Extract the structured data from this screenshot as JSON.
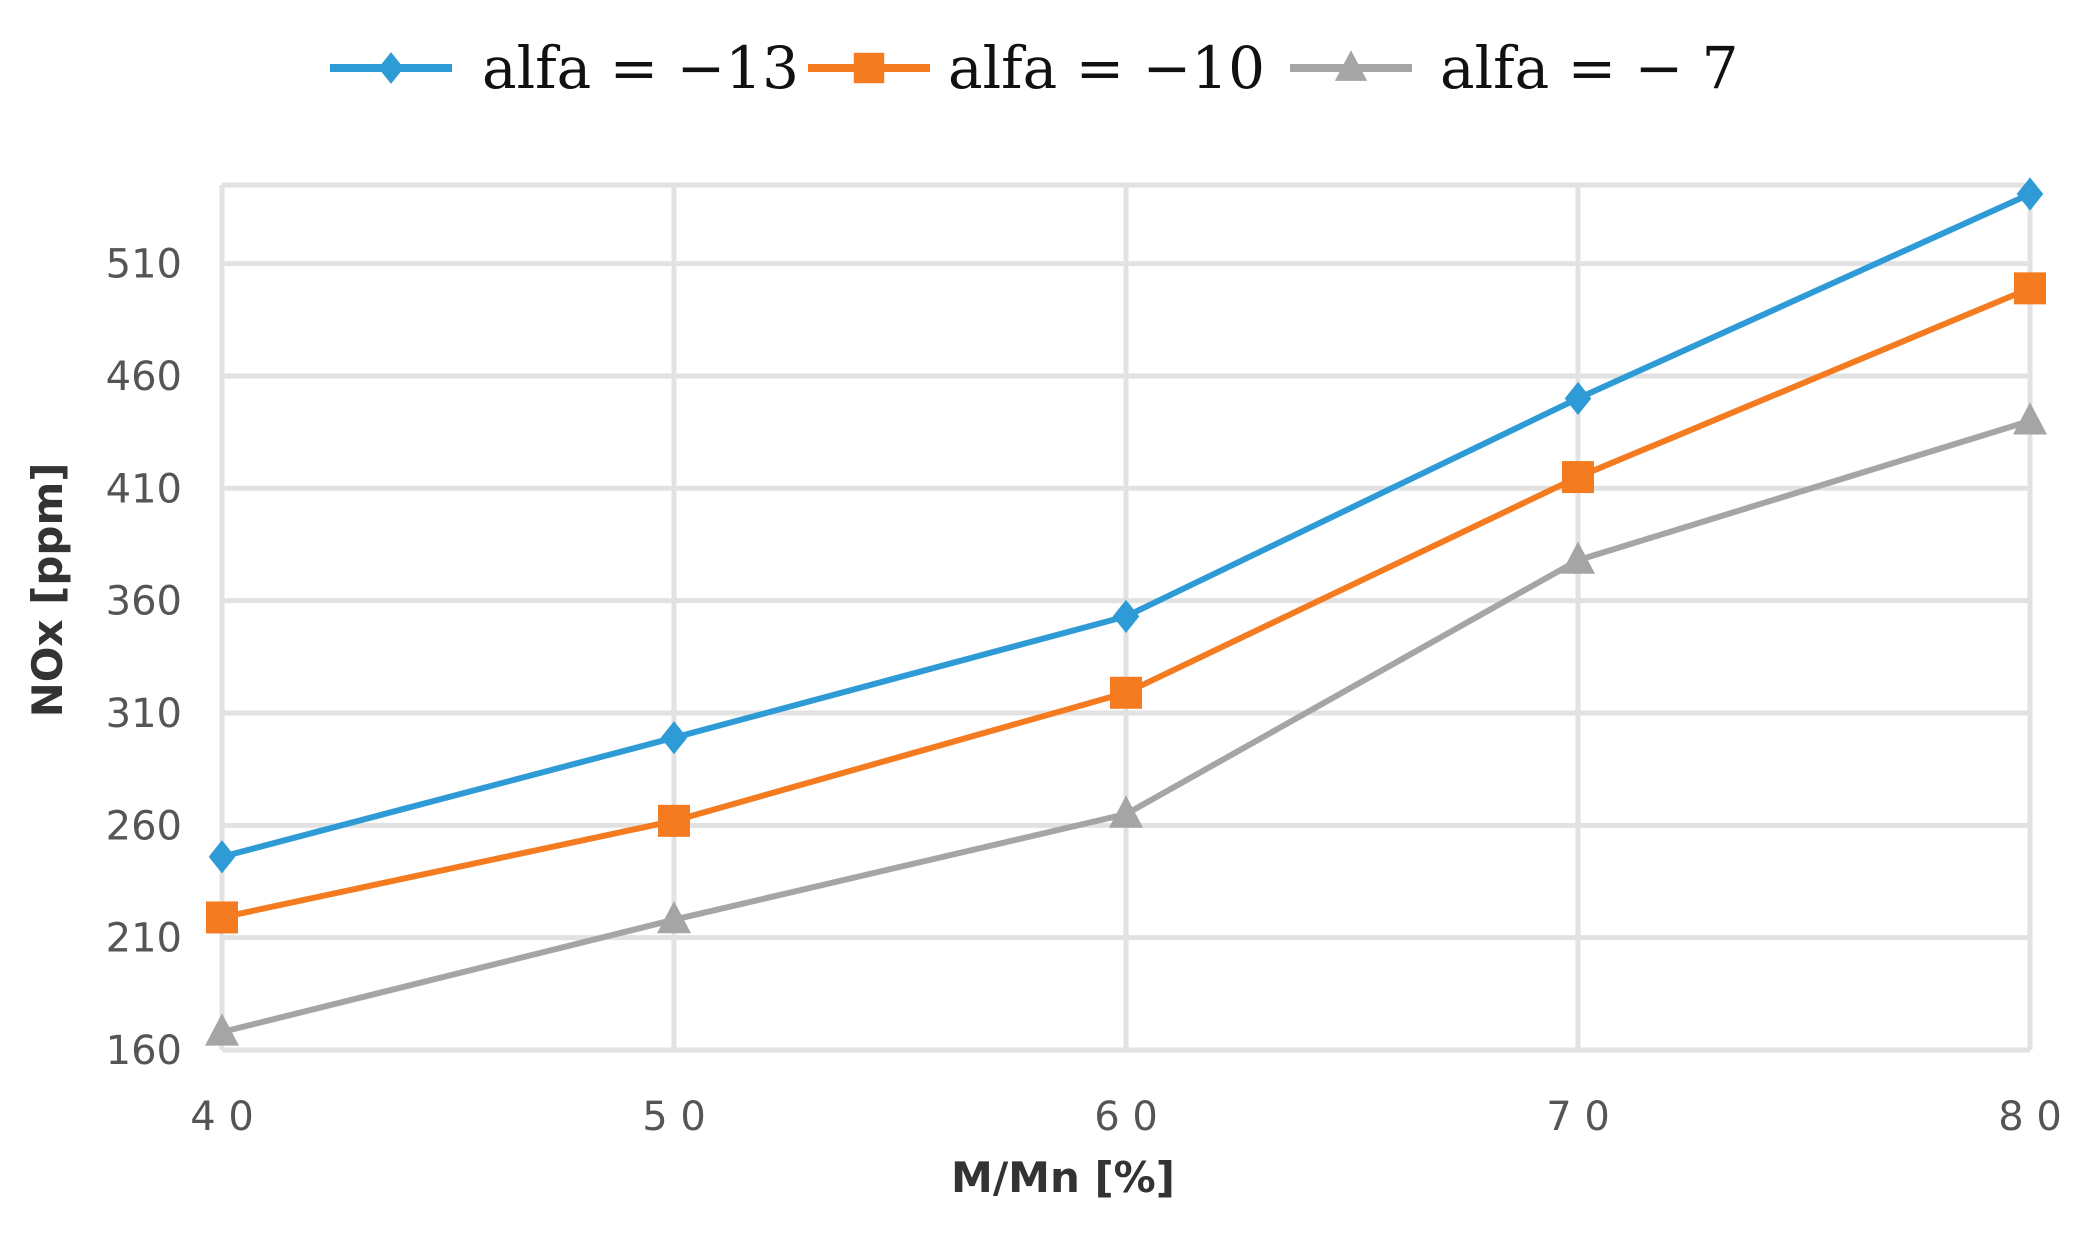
{
  "chart_data": {
    "type": "line",
    "title": "",
    "xlabel": "M/Mn [%]",
    "ylabel": "NOx [ppm]",
    "x": [
      40,
      50,
      60,
      70,
      80
    ],
    "x_tick_labels": [
      "4 0",
      "5 0",
      "6 0",
      "7 0",
      "8 0"
    ],
    "y_ticks": [
      160,
      210,
      260,
      310,
      360,
      410,
      460,
      510
    ],
    "xlim": [
      40,
      80
    ],
    "ylim": [
      160,
      545
    ],
    "grid": true,
    "legend_position": "top",
    "series": [
      {
        "name": "alfa = −13",
        "values": [
          246,
          299,
          353,
          450,
          541
        ],
        "color": "#2E9BD6",
        "marker": "diamond"
      },
      {
        "name": "alfa = −10",
        "values": [
          219,
          262,
          319,
          415,
          499
        ],
        "color": "#F47B20",
        "marker": "square"
      },
      {
        "name": "alfa = − 7",
        "values": [
          168,
          218,
          265,
          378,
          440
        ],
        "color": "#A5A5A5",
        "marker": "triangle"
      }
    ]
  }
}
